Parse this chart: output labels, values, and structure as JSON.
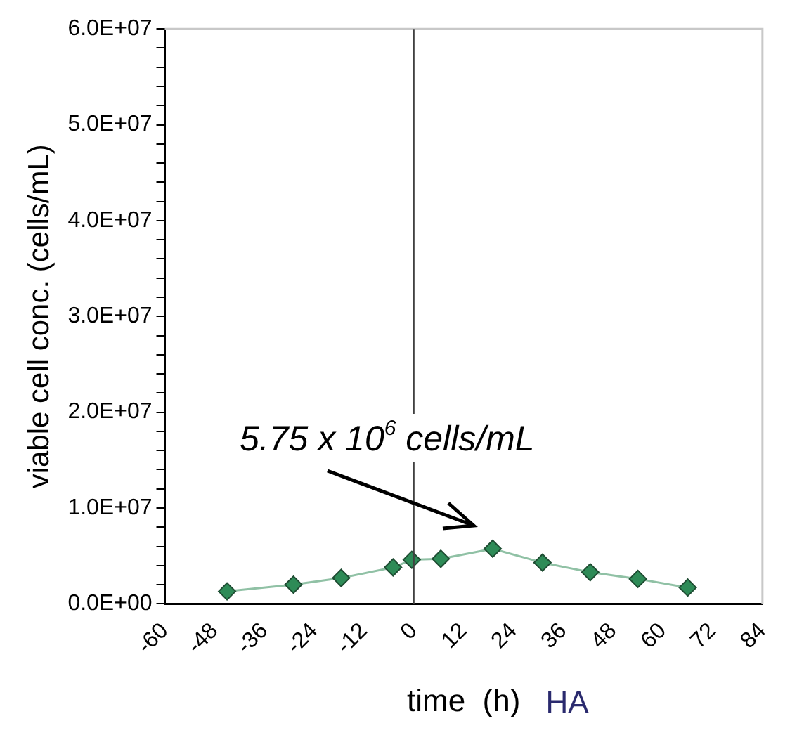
{
  "chart_data": {
    "type": "line",
    "xlabel": "time  (h)",
    "ylabel": "viable cell conc. (cells/mL)",
    "x": [
      -45,
      -29,
      -17.5,
      -5,
      -0.5,
      6.5,
      19,
      31,
      42.5,
      54,
      66
    ],
    "series": [
      {
        "color": "#2e8b57",
        "values": [
          1300000,
          2000000,
          2700000,
          3800000,
          4600000,
          4700000,
          5750000,
          4300000,
          3300000,
          2600000,
          1700000
        ]
      }
    ],
    "xlim": [
      -60,
      84
    ],
    "xticks": [
      -60,
      -48,
      -36,
      -24,
      -12,
      0,
      12,
      24,
      36,
      48,
      60,
      72,
      84
    ],
    "ylim": [
      0,
      60000000
    ],
    "yticks": [
      {
        "value": 0,
        "label": "0.0E+00"
      },
      {
        "value": 2000000,
        "label": null
      },
      {
        "value": 4000000,
        "label": null
      },
      {
        "value": 6000000,
        "label": null
      },
      {
        "value": 8000000,
        "label": null
      },
      {
        "value": 10000000,
        "label": "1.0E+07"
      },
      {
        "value": 12000000,
        "label": null
      },
      {
        "value": 14000000,
        "label": null
      },
      {
        "value": 16000000,
        "label": null
      },
      {
        "value": 18000000,
        "label": null
      },
      {
        "value": 20000000,
        "label": "2.0E+07"
      },
      {
        "value": 22000000,
        "label": null
      },
      {
        "value": 24000000,
        "label": null
      },
      {
        "value": 26000000,
        "label": null
      },
      {
        "value": 28000000,
        "label": null
      },
      {
        "value": 30000000,
        "label": "3.0E+07"
      },
      {
        "value": 32000000,
        "label": null
      },
      {
        "value": 34000000,
        "label": null
      },
      {
        "value": 36000000,
        "label": null
      },
      {
        "value": 38000000,
        "label": null
      },
      {
        "value": 40000000,
        "label": "4.0E+07"
      },
      {
        "value": 42000000,
        "label": null
      },
      {
        "value": 44000000,
        "label": null
      },
      {
        "value": 46000000,
        "label": null
      },
      {
        "value": 48000000,
        "label": null
      },
      {
        "value": 50000000,
        "label": "5.0E+07"
      },
      {
        "value": 52000000,
        "label": null
      },
      {
        "value": 54000000,
        "label": null
      },
      {
        "value": 56000000,
        "label": null
      },
      {
        "value": 58000000,
        "label": null
      },
      {
        "value": 60000000,
        "label": "6.0E+07"
      }
    ],
    "ref_lines": [
      {
        "axis": "x",
        "value": 0,
        "color": "#404040"
      }
    ],
    "annotations": [
      {
        "text": "5.75 x 10$^{6}$ cells/mL",
        "x": 19,
        "y": 5750000
      },
      "HA"
    ],
    "marker": "diamond",
    "line_style": "solid",
    "grid": false,
    "legend": false
  }
}
